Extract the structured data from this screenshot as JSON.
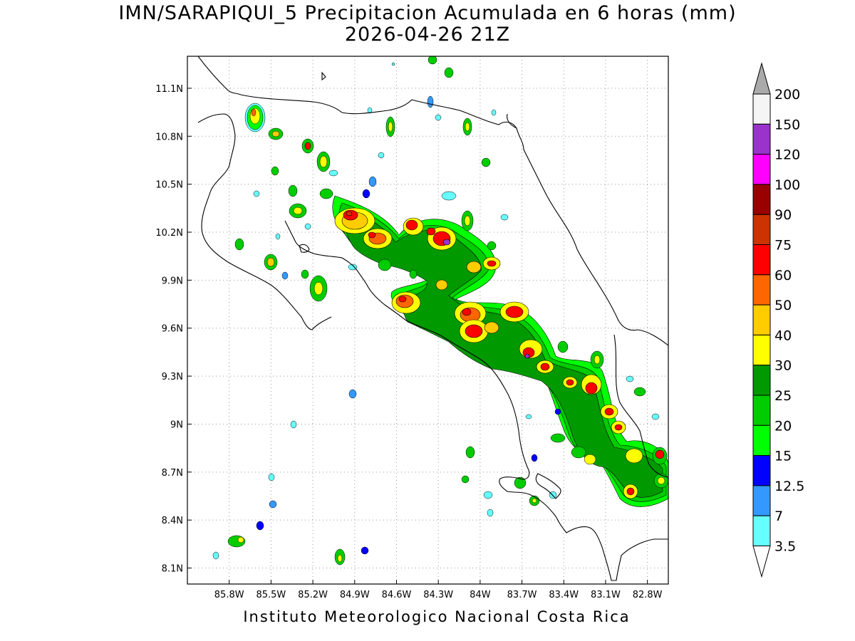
{
  "title": {
    "line1": "IMN/SARAPIQUI_5 Precipitacion Acumulada en 6 horas (mm)",
    "line2": "2026-04-26 21Z"
  },
  "footer": "Instituto Meteorologico Nacional Costa Rica",
  "map": {
    "lon_range": [
      -86.1,
      -82.65
    ],
    "lat_range": [
      8.0,
      11.3
    ],
    "lon_ticks": [
      "85.8W",
      "85.5W",
      "85.2W",
      "84.9W",
      "84.6W",
      "84.3W",
      "84W",
      "83.7W",
      "83.4W",
      "83.1W",
      "82.8W"
    ],
    "lat_ticks": [
      "11.1N",
      "10.8N",
      "10.5N",
      "10.2N",
      "9.9N",
      "9.6N",
      "9.3N",
      "9N",
      "8.7N",
      "8.4N",
      "8.1N"
    ],
    "grid": "dotted"
  },
  "colorbar": {
    "levels": [
      "200",
      "150",
      "120",
      "100",
      "90",
      "75",
      "60",
      "50",
      "40",
      "30",
      "25",
      "20",
      "15",
      "12.5",
      "7",
      "3.5"
    ],
    "colors": [
      "#f5f5f5",
      "#9933cc",
      "#ff00ff",
      "#990000",
      "#cc3300",
      "#ff0000",
      "#ff6600",
      "#ffcc00",
      "#ffff00",
      "#009900",
      "#00cc00",
      "#00ff00",
      "#0000ff",
      "#3399ff",
      "#66ffff"
    ],
    "over_color": "#aaaaaa",
    "under_color": "#ffffff"
  }
}
